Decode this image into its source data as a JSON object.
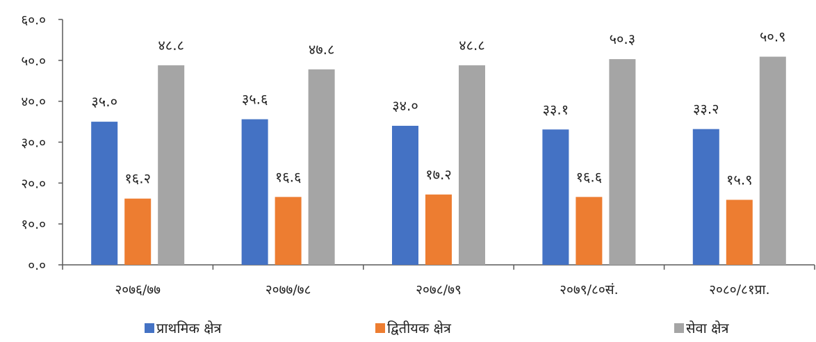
{
  "chart_data": {
    "type": "bar",
    "categories": [
      "२०७६/७७",
      "२०७७/७८",
      "२०७८/७९",
      "२०७९/८०सं.",
      "२०८०/८१प्रा."
    ],
    "series": [
      {
        "name": "प्राथमिक क्षेत्र",
        "color": "#4472C4",
        "values": [
          35.0,
          35.6,
          34.0,
          33.1,
          33.2
        ],
        "labels": [
          "३५.०",
          "३५.६",
          "३४.०",
          "३३.१",
          "३३.२"
        ]
      },
      {
        "name": "द्वितीयक क्षेत्र",
        "color": "#ED7D31",
        "values": [
          16.2,
          16.6,
          17.2,
          16.6,
          15.9
        ],
        "labels": [
          "१६.२",
          "१६.६",
          "१७.२",
          "१६.६",
          "१५.९"
        ]
      },
      {
        "name": "सेवा क्षेत्र",
        "color": "#A5A5A5",
        "values": [
          48.8,
          47.8,
          48.8,
          50.3,
          50.9
        ],
        "labels": [
          "४८.८",
          "४७.८",
          "४८.८",
          "५०.३",
          "५०.९"
        ]
      }
    ],
    "ylim": [
      0,
      60
    ],
    "yticks": [
      0,
      10,
      20,
      30,
      40,
      50,
      60
    ],
    "ytick_labels": [
      "०.०",
      "१०.०",
      "२०.०",
      "३०.०",
      "४०.०",
      "५०.०",
      "६०.०"
    ],
    "grid": false,
    "legend_position": "bottom"
  }
}
